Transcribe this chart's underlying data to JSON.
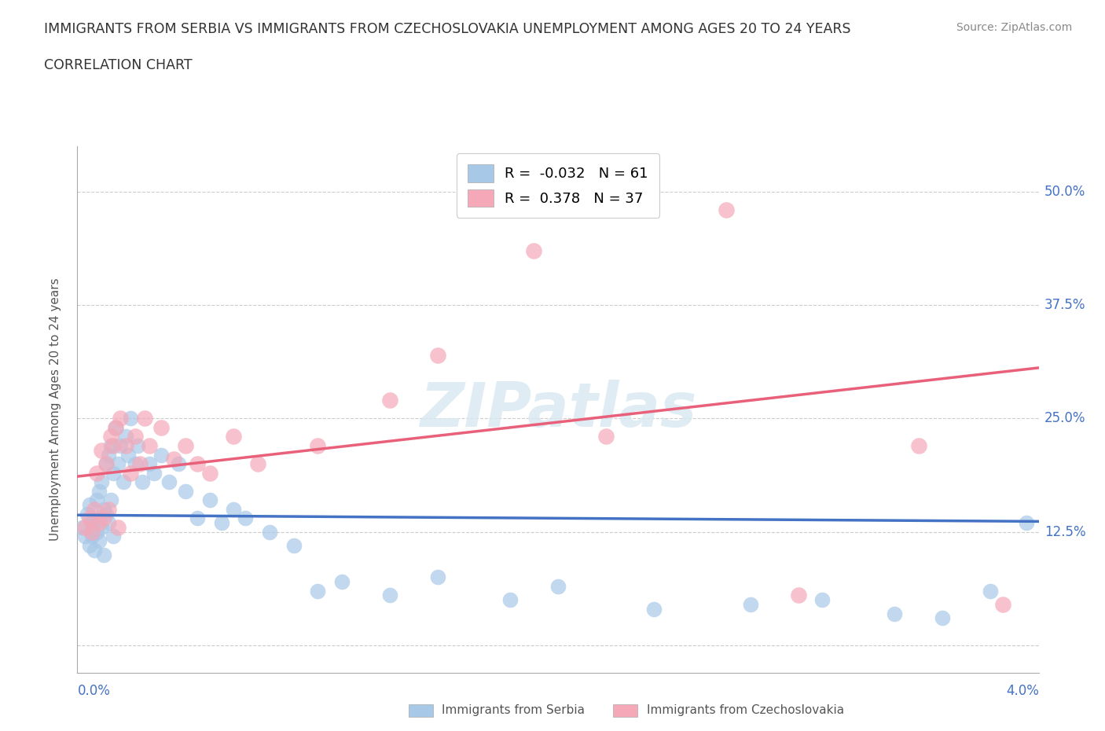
{
  "title_line1": "IMMIGRANTS FROM SERBIA VS IMMIGRANTS FROM CZECHOSLOVAKIA UNEMPLOYMENT AMONG AGES 20 TO 24 YEARS",
  "title_line2": "CORRELATION CHART",
  "source": "Source: ZipAtlas.com",
  "ylabel": "Unemployment Among Ages 20 to 24 years",
  "xlim": [
    0.0,
    4.0
  ],
  "ylim": [
    -3.0,
    55.0
  ],
  "yticks": [
    0.0,
    12.5,
    25.0,
    37.5,
    50.0
  ],
  "ytick_labels": [
    "",
    "12.5%",
    "25.0%",
    "37.5%",
    "50.0%"
  ],
  "watermark": "ZIPatlas",
  "serbia_color": "#a8c8e8",
  "czechoslovakia_color": "#f4a8b8",
  "serbia_line_color": "#4472c4",
  "czechoslovakia_line_color": "#e8607a",
  "serbia_R": -0.032,
  "serbia_N": 61,
  "czechoslovakia_R": 0.378,
  "czechoslovakia_N": 37,
  "legend_label_serbia": "Immigrants from Serbia",
  "legend_label_czechoslovakia": "Immigrants from Czechoslovakia",
  "serbia_x": [
    0.02,
    0.03,
    0.04,
    0.05,
    0.05,
    0.06,
    0.06,
    0.07,
    0.07,
    0.08,
    0.08,
    0.09,
    0.09,
    0.1,
    0.1,
    0.11,
    0.11,
    0.12,
    0.12,
    0.13,
    0.13,
    0.14,
    0.14,
    0.15,
    0.15,
    0.16,
    0.17,
    0.18,
    0.19,
    0.2,
    0.21,
    0.22,
    0.24,
    0.25,
    0.27,
    0.3,
    0.32,
    0.35,
    0.38,
    0.42,
    0.45,
    0.5,
    0.55,
    0.6,
    0.65,
    0.7,
    0.8,
    0.9,
    1.0,
    1.1,
    1.3,
    1.5,
    1.8,
    2.0,
    2.4,
    2.8,
    3.1,
    3.4,
    3.6,
    3.8,
    3.95
  ],
  "serbia_y": [
    13.0,
    12.0,
    14.5,
    11.0,
    15.5,
    13.5,
    12.0,
    14.0,
    10.5,
    16.0,
    12.5,
    17.0,
    11.5,
    18.0,
    13.0,
    15.0,
    10.0,
    20.0,
    14.5,
    21.0,
    13.5,
    22.0,
    16.0,
    19.0,
    12.0,
    24.0,
    20.0,
    22.0,
    18.0,
    23.0,
    21.0,
    25.0,
    20.0,
    22.0,
    18.0,
    20.0,
    19.0,
    21.0,
    18.0,
    20.0,
    17.0,
    14.0,
    16.0,
    13.5,
    15.0,
    14.0,
    12.5,
    11.0,
    6.0,
    7.0,
    5.5,
    7.5,
    5.0,
    6.5,
    4.0,
    4.5,
    5.0,
    3.5,
    3.0,
    6.0,
    13.5
  ],
  "czechoslovakia_x": [
    0.03,
    0.05,
    0.06,
    0.07,
    0.08,
    0.09,
    0.1,
    0.11,
    0.12,
    0.13,
    0.14,
    0.15,
    0.16,
    0.17,
    0.18,
    0.2,
    0.22,
    0.24,
    0.26,
    0.28,
    0.3,
    0.35,
    0.4,
    0.45,
    0.5,
    0.55,
    0.65,
    0.75,
    1.0,
    1.3,
    1.5,
    1.9,
    2.2,
    2.7,
    3.0,
    3.5,
    3.85
  ],
  "czechoslovakia_y": [
    13.0,
    14.0,
    12.5,
    15.0,
    19.0,
    13.5,
    21.5,
    14.0,
    20.0,
    15.0,
    23.0,
    22.0,
    24.0,
    13.0,
    25.0,
    22.0,
    19.0,
    23.0,
    20.0,
    25.0,
    22.0,
    24.0,
    20.5,
    22.0,
    20.0,
    19.0,
    23.0,
    20.0,
    22.0,
    27.0,
    32.0,
    43.5,
    23.0,
    48.0,
    5.5,
    22.0,
    4.5
  ]
}
